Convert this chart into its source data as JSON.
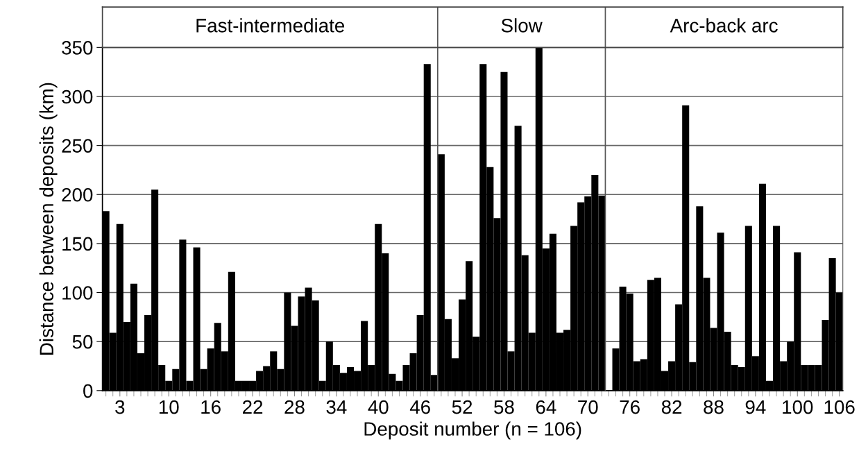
{
  "chart_data": {
    "type": "bar",
    "xlabel": "Deposit number (n = 106)",
    "ylabel": "Distance between deposits (km)",
    "x": [
      1,
      2,
      3,
      4,
      5,
      6,
      7,
      8,
      9,
      10,
      11,
      12,
      13,
      14,
      15,
      16,
      17,
      18,
      19,
      20,
      21,
      22,
      23,
      24,
      25,
      26,
      27,
      28,
      29,
      30,
      31,
      32,
      33,
      34,
      35,
      36,
      37,
      38,
      39,
      40,
      41,
      42,
      43,
      44,
      45,
      46,
      47,
      48,
      49,
      50,
      51,
      52,
      53,
      54,
      55,
      56,
      57,
      58,
      59,
      60,
      61,
      62,
      63,
      64,
      65,
      66,
      67,
      68,
      69,
      70,
      71,
      72,
      73,
      74,
      75,
      76,
      77,
      78,
      79,
      80,
      81,
      82,
      83,
      84,
      85,
      86,
      87,
      88,
      89,
      90,
      91,
      92,
      93,
      94,
      95,
      96,
      97,
      98,
      99,
      100,
      101,
      102,
      103,
      104,
      105,
      106
    ],
    "values": [
      183,
      59,
      170,
      70,
      109,
      38,
      77,
      205,
      26,
      10,
      22,
      154,
      10,
      146,
      22,
      43,
      69,
      40,
      121,
      10,
      10,
      10,
      20,
      25,
      40,
      22,
      100,
      66,
      96,
      105,
      92,
      10,
      50,
      26,
      18,
      24,
      20,
      71,
      26,
      170,
      140,
      17,
      10,
      26,
      38,
      77,
      333,
      16,
      241,
      73,
      33,
      93,
      132,
      55,
      333,
      228,
      176,
      325,
      40,
      270,
      138,
      59,
      350,
      145,
      160,
      59,
      62,
      168,
      192,
      198,
      220,
      199,
      null,
      43,
      106,
      99,
      30,
      32,
      113,
      115,
      20,
      30,
      88,
      291,
      29,
      188,
      115,
      64,
      161,
      60,
      26,
      24,
      168,
      35,
      211,
      10,
      168,
      30,
      50,
      141,
      26,
      26,
      26,
      72,
      135,
      100
    ],
    "color": "#000000",
    "xlim": [
      0.5,
      106.5
    ],
    "xticks": [
      3,
      10,
      16,
      22,
      28,
      34,
      40,
      46,
      52,
      58,
      64,
      70,
      76,
      82,
      88,
      94,
      100,
      106
    ],
    "ylim": [
      0,
      350
    ],
    "yticks": [
      0,
      50,
      100,
      150,
      200,
      250,
      300,
      350
    ],
    "grid": "y",
    "ref_lines": [
      {
        "axis": "x",
        "value": 48.5,
        "color": "#555555"
      },
      {
        "axis": "x",
        "value": 72.5,
        "color": "#555555"
      }
    ],
    "annotations": [
      "Fast-intermediate",
      "Slow",
      "Arc-back arc"
    ]
  }
}
